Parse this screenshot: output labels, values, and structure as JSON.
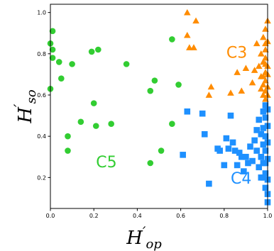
{
  "chart_data": {
    "type": "scatter",
    "title": "",
    "xlabel": {
      "base": "H",
      "prime": "′",
      "sub": "op"
    },
    "ylabel": {
      "base": "H",
      "prime": "′",
      "sub": "so"
    },
    "xlim": [
      0.0,
      1.0
    ],
    "ylim": [
      0.05,
      1.04
    ],
    "xticks": [
      "0.0",
      "0.2",
      "0.4",
      "0.6",
      "0.8",
      "1.0"
    ],
    "yticks": [
      "0.2",
      "0.4",
      "0.6",
      "0.8",
      "1.0"
    ],
    "grid": false,
    "legend": "none",
    "series": [
      {
        "name": "C3",
        "marker": "triangle",
        "color": "#ff8c00",
        "label_pos": [
          0.81,
          0.78
        ],
        "points": [
          [
            0.63,
            1.0
          ],
          [
            0.67,
            0.96
          ],
          [
            0.63,
            0.89
          ],
          [
            0.64,
            0.83
          ],
          [
            0.66,
            0.83
          ],
          [
            0.73,
            0.6
          ],
          [
            0.74,
            0.64
          ],
          [
            0.83,
            0.61
          ],
          [
            0.86,
            0.71
          ],
          [
            0.88,
            0.62
          ],
          [
            0.9,
            0.73
          ],
          [
            0.93,
            0.66
          ],
          [
            0.94,
            0.72
          ],
          [
            0.95,
            0.85
          ],
          [
            0.96,
            0.74
          ],
          [
            0.97,
            0.8
          ],
          [
            0.97,
            0.69
          ],
          [
            0.98,
            0.76
          ],
          [
            0.98,
            0.65
          ],
          [
            0.98,
            0.6
          ],
          [
            0.98,
            0.88
          ],
          [
            0.99,
            0.82
          ],
          [
            0.99,
            0.71
          ],
          [
            0.99,
            0.62
          ],
          [
            0.99,
            0.92
          ],
          [
            0.99,
            0.67
          ],
          [
            0.99,
            0.58
          ],
          [
            0.99,
            0.78
          ],
          [
            1.0,
            0.96
          ],
          [
            1.0,
            0.86
          ],
          [
            1.0,
            0.74
          ],
          [
            1.0,
            0.7
          ],
          [
            1.0,
            0.64
          ],
          [
            1.0,
            0.6
          ],
          [
            0.98,
            0.69
          ],
          [
            0.99,
            0.85
          ],
          [
            0.97,
            0.63
          ],
          [
            0.99,
            0.75
          ]
        ]
      },
      {
        "name": "C4",
        "marker": "square",
        "color": "#1e90ff",
        "label_pos": [
          0.83,
          0.17
        ],
        "points": [
          [
            0.63,
            0.52
          ],
          [
            0.7,
            0.51
          ],
          [
            0.71,
            0.41
          ],
          [
            0.61,
            0.31
          ],
          [
            0.73,
            0.17
          ],
          [
            0.77,
            0.34
          ],
          [
            0.78,
            0.33
          ],
          [
            0.81,
            0.39
          ],
          [
            0.82,
            0.34
          ],
          [
            0.83,
            0.5
          ],
          [
            0.84,
            0.37
          ],
          [
            0.85,
            0.33
          ],
          [
            0.8,
            0.26
          ],
          [
            0.86,
            0.26
          ],
          [
            0.87,
            0.32
          ],
          [
            0.88,
            0.3
          ],
          [
            0.89,
            0.23
          ],
          [
            0.9,
            0.3
          ],
          [
            0.91,
            0.27
          ],
          [
            0.92,
            0.35
          ],
          [
            0.93,
            0.28
          ],
          [
            0.94,
            0.38
          ],
          [
            0.95,
            0.43
          ],
          [
            0.95,
            0.33
          ],
          [
            0.96,
            0.48
          ],
          [
            0.96,
            0.25
          ],
          [
            0.97,
            0.41
          ],
          [
            0.97,
            0.3
          ],
          [
            0.97,
            0.2
          ],
          [
            0.98,
            0.52
          ],
          [
            0.98,
            0.44
          ],
          [
            0.98,
            0.36
          ],
          [
            0.98,
            0.27
          ],
          [
            0.99,
            0.55
          ],
          [
            0.99,
            0.49
          ],
          [
            0.99,
            0.4
          ],
          [
            0.99,
            0.33
          ],
          [
            0.99,
            0.22
          ],
          [
            0.99,
            0.15
          ],
          [
            1.0,
            0.53
          ],
          [
            1.0,
            0.45
          ],
          [
            1.0,
            0.37
          ],
          [
            1.0,
            0.29
          ],
          [
            1.0,
            0.12
          ],
          [
            1.0,
            0.19
          ],
          [
            0.99,
            0.27
          ],
          [
            0.98,
            0.2
          ],
          [
            1.0,
            0.08
          ]
        ]
      },
      {
        "name": "C5",
        "marker": "circle",
        "color": "#32cd32",
        "label_pos": [
          0.21,
          0.25
        ],
        "points": [
          [
            0.01,
            0.91
          ],
          [
            0.0,
            0.85
          ],
          [
            0.01,
            0.82
          ],
          [
            0.01,
            0.78
          ],
          [
            0.04,
            0.76
          ],
          [
            0.1,
            0.75
          ],
          [
            0.0,
            0.63
          ],
          [
            0.05,
            0.68
          ],
          [
            0.19,
            0.81
          ],
          [
            0.22,
            0.82
          ],
          [
            0.35,
            0.75
          ],
          [
            0.56,
            0.87
          ],
          [
            0.2,
            0.56
          ],
          [
            0.48,
            0.67
          ],
          [
            0.46,
            0.62
          ],
          [
            0.59,
            0.65
          ],
          [
            0.14,
            0.47
          ],
          [
            0.21,
            0.45
          ],
          [
            0.28,
            0.46
          ],
          [
            0.08,
            0.4
          ],
          [
            0.08,
            0.33
          ],
          [
            0.51,
            0.33
          ],
          [
            0.56,
            0.46
          ],
          [
            0.46,
            0.27
          ]
        ]
      }
    ]
  }
}
